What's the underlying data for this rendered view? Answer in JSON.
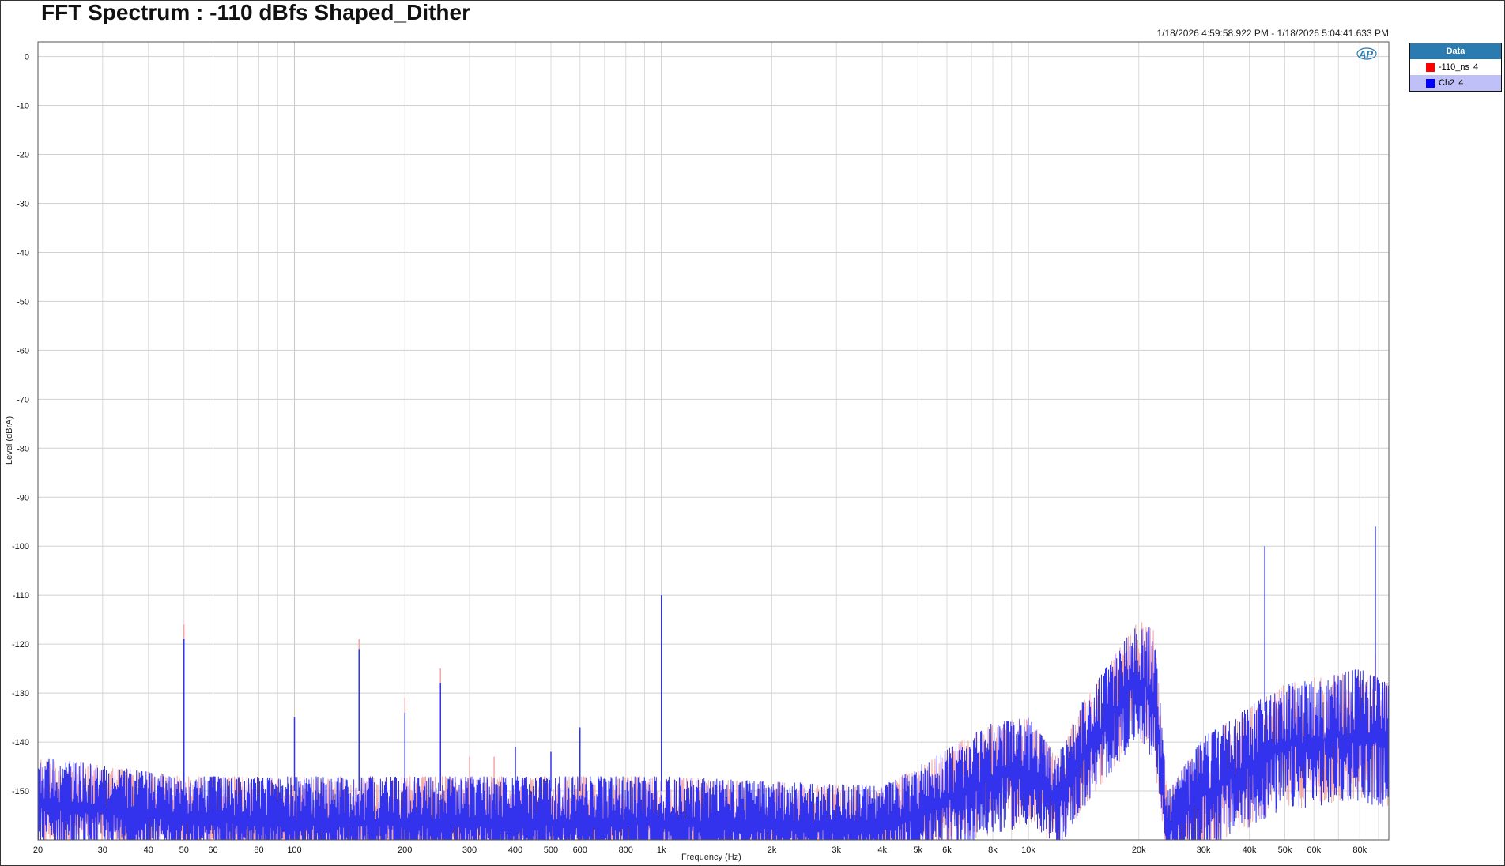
{
  "chart_data": {
    "type": "line",
    "title": "FFT Spectrum : -110 dBfs Shaped_Dither",
    "timestamp": "1/18/2026 4:59:58.922 PM - 1/18/2026 5:04:41.633 PM",
    "xlabel": "Frequency (Hz)",
    "ylabel": "Level (dBrA)",
    "x_scale": "log",
    "xlim": [
      20,
      96000
    ],
    "ylim": [
      -160,
      3
    ],
    "grid": true,
    "legend_placement": "right",
    "legend_title": "Data",
    "x_ticks": [
      {
        "v": 20,
        "label": "20"
      },
      {
        "v": 30,
        "label": "30"
      },
      {
        "v": 40,
        "label": "40"
      },
      {
        "v": 50,
        "label": "50"
      },
      {
        "v": 60,
        "label": "60"
      },
      {
        "v": 80,
        "label": "80"
      },
      {
        "v": 100,
        "label": "100"
      },
      {
        "v": 200,
        "label": "200"
      },
      {
        "v": 300,
        "label": "300"
      },
      {
        "v": 400,
        "label": "400"
      },
      {
        "v": 500,
        "label": "500"
      },
      {
        "v": 600,
        "label": "600"
      },
      {
        "v": 800,
        "label": "800"
      },
      {
        "v": 1000,
        "label": "1k"
      },
      {
        "v": 2000,
        "label": "2k"
      },
      {
        "v": 3000,
        "label": "3k"
      },
      {
        "v": 4000,
        "label": "4k"
      },
      {
        "v": 5000,
        "label": "5k"
      },
      {
        "v": 6000,
        "label": "6k"
      },
      {
        "v": 8000,
        "label": "8k"
      },
      {
        "v": 10000,
        "label": "10k"
      },
      {
        "v": 20000,
        "label": "20k"
      },
      {
        "v": 30000,
        "label": "30k"
      },
      {
        "v": 40000,
        "label": "40k"
      },
      {
        "v": 50000,
        "label": "50k"
      },
      {
        "v": 60000,
        "label": "60k"
      },
      {
        "v": 80000,
        "label": "80k"
      }
    ],
    "y_ticks": [
      {
        "v": 0,
        "label": "0"
      },
      {
        "v": -10,
        "label": "-10"
      },
      {
        "v": -20,
        "label": "-20"
      },
      {
        "v": -30,
        "label": "-30"
      },
      {
        "v": -40,
        "label": "-40"
      },
      {
        "v": -50,
        "label": "-50"
      },
      {
        "v": -60,
        "label": "-60"
      },
      {
        "v": -70,
        "label": "-70"
      },
      {
        "v": -80,
        "label": "-80"
      },
      {
        "v": -90,
        "label": "-90"
      },
      {
        "v": -100,
        "label": "-100"
      },
      {
        "v": -110,
        "label": "-110"
      },
      {
        "v": -120,
        "label": "-120"
      },
      {
        "v": -130,
        "label": "-130"
      },
      {
        "v": -140,
        "label": "-140"
      },
      {
        "v": -150,
        "label": "-150"
      }
    ],
    "noise_envelope_hz_top_bottom_db": [
      [
        20,
        -143,
        -158
      ],
      [
        50,
        -147,
        -160
      ],
      [
        100,
        -147,
        -162
      ],
      [
        1000,
        -147,
        -162
      ],
      [
        4000,
        -149,
        -162
      ],
      [
        5000,
        -145,
        -160
      ],
      [
        8000,
        -136,
        -155
      ],
      [
        10000,
        -135,
        -153
      ],
      [
        12000,
        -143,
        -158
      ],
      [
        14000,
        -132,
        -150
      ],
      [
        20000,
        -115,
        -135
      ],
      [
        22000,
        -117,
        -140
      ],
      [
        24000,
        -150,
        -162
      ],
      [
        30000,
        -139,
        -158
      ],
      [
        50000,
        -128,
        -150
      ],
      [
        80000,
        -125,
        -148
      ],
      [
        96000,
        -128,
        -150
      ]
    ],
    "series": [
      {
        "name": "-110_ns",
        "legend_suffix": "4",
        "color": "#f08080",
        "peaks": [
          [
            50,
            -116
          ],
          [
            150,
            -119
          ],
          [
            200,
            -131
          ],
          [
            250,
            -125
          ],
          [
            300,
            -143
          ],
          [
            350,
            -143
          ],
          [
            1000,
            -111
          ],
          [
            88200,
            -122
          ]
        ]
      },
      {
        "name": "Ch2",
        "legend_suffix": "4",
        "color": "#3333ee",
        "peaks": [
          [
            50,
            -119
          ],
          [
            100,
            -135
          ],
          [
            150,
            -121
          ],
          [
            200,
            -134
          ],
          [
            250,
            -128
          ],
          [
            400,
            -141
          ],
          [
            500,
            -142
          ],
          [
            600,
            -137
          ],
          [
            1000,
            -110
          ],
          [
            44100,
            -100
          ],
          [
            88200,
            -96
          ]
        ]
      }
    ]
  }
}
